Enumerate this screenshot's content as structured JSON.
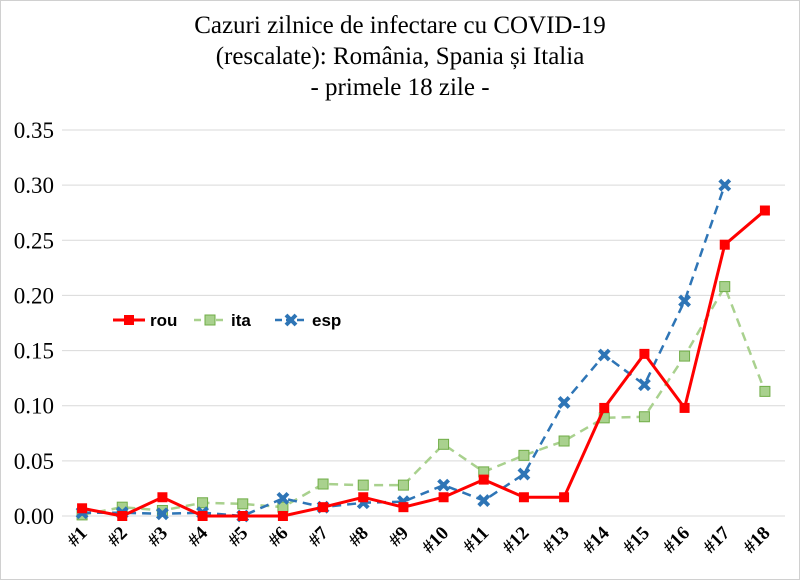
{
  "chart_data": {
    "type": "line",
    "title": [
      "Cazuri zilnice de infectare cu COVID-19",
      "(rescalate): România, Spania și Italia",
      "- primele 18 zile -"
    ],
    "categories": [
      "#1",
      "#2",
      "#3",
      "#4",
      "#5",
      "#6",
      "#7",
      "#8",
      "#9",
      "#10",
      "#11",
      "#12",
      "#13",
      "#14",
      "#15",
      "#16",
      "#17",
      "#18"
    ],
    "ylim": [
      0,
      0.35
    ],
    "yticks": [
      "0.00",
      "0.05",
      "0.10",
      "0.15",
      "0.20",
      "0.25",
      "0.30",
      "0.35"
    ],
    "grid": true,
    "legend_placement": "left-middle",
    "series": [
      {
        "name": "rou",
        "color": "#ff0000",
        "style": "solid",
        "marker": "square",
        "values": [
          0.007,
          0,
          0.017,
          0,
          0,
          0,
          0.008,
          0.017,
          0.008,
          0.017,
          0.033,
          0.017,
          0.017,
          0.098,
          0.147,
          0.098,
          0.246,
          0.277
        ]
      },
      {
        "name": "ita",
        "color": "#a9d18e",
        "style": "dashed",
        "marker": "square-outline",
        "values": [
          0.001,
          0.008,
          0.005,
          0.012,
          0.011,
          0.008,
          0.029,
          0.028,
          0.028,
          0.065,
          0.04,
          0.055,
          0.068,
          0.089,
          0.09,
          0.145,
          0.208,
          0.113
        ]
      },
      {
        "name": "esp",
        "color": "#2e75b6",
        "style": "dashed",
        "marker": "star",
        "values": [
          0.003,
          0.003,
          0.002,
          0.003,
          0,
          0.016,
          0.008,
          0.012,
          0.013,
          0.028,
          0.014,
          0.038,
          0.103,
          0.146,
          0.119,
          0.195,
          0.3,
          null
        ]
      }
    ]
  }
}
